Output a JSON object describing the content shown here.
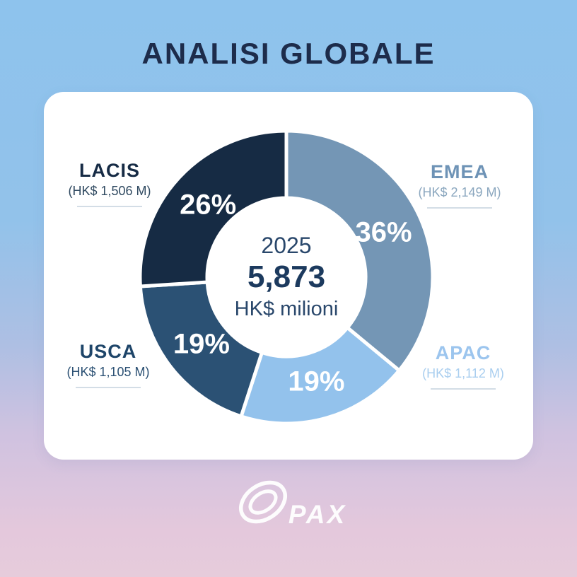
{
  "header": {
    "title": "ANALISI GLOBALE"
  },
  "chart_data": {
    "type": "pie",
    "subtype": "donut",
    "title": "ANALISI GLOBALE",
    "direction": "clockwise",
    "start_angle_deg": 0,
    "legend_position": "around",
    "center": {
      "year": "2025",
      "total": "5,873",
      "unit": "HK$ milioni",
      "total_value": 5873
    },
    "segments": [
      {
        "label": "EMEA",
        "value_text": "(HK$ 2,149 M)",
        "value_hkd_m": 2149,
        "percent": 36,
        "percent_label": "36%",
        "color": "#7496b5",
        "label_color": "#6e93b6",
        "value_color": "#8ba7bf"
      },
      {
        "label": "APAC",
        "value_text": "(HK$ 1,112 M)",
        "value_hkd_m": 1112,
        "percent": 19,
        "percent_label": "19%",
        "color": "#93c2ec",
        "label_color": "#9cc5ee",
        "value_color": "#a9ceef"
      },
      {
        "label": "USCA",
        "value_text": "(HK$ 1,105 M)",
        "value_hkd_m": 1105,
        "percent": 19,
        "percent_label": "19%",
        "color": "#2b5174",
        "label_color": "#1e4569",
        "value_color": "#2c5174"
      },
      {
        "label": "LACIS",
        "value_text": "(HK$ 1,506 M)",
        "value_hkd_m": 1506,
        "percent": 26,
        "percent_label": "26%",
        "color": "#162b44",
        "label_color": "#162b45",
        "value_color": "#2f4960"
      }
    ]
  },
  "footer": {
    "brand": "PAX",
    "logo_icon": "pax-rings-logo"
  },
  "colors": {
    "background_top": "#8ec3ed",
    "background_bottom": "#e6ccdb",
    "card": "#ffffff",
    "title_text": "#1d2c4b",
    "center_text": "#29476b",
    "percent_text": "#ffffff",
    "leader_line": "#d3dde6",
    "segment_gap": "#ffffff",
    "brand_text": "#ffffff"
  }
}
